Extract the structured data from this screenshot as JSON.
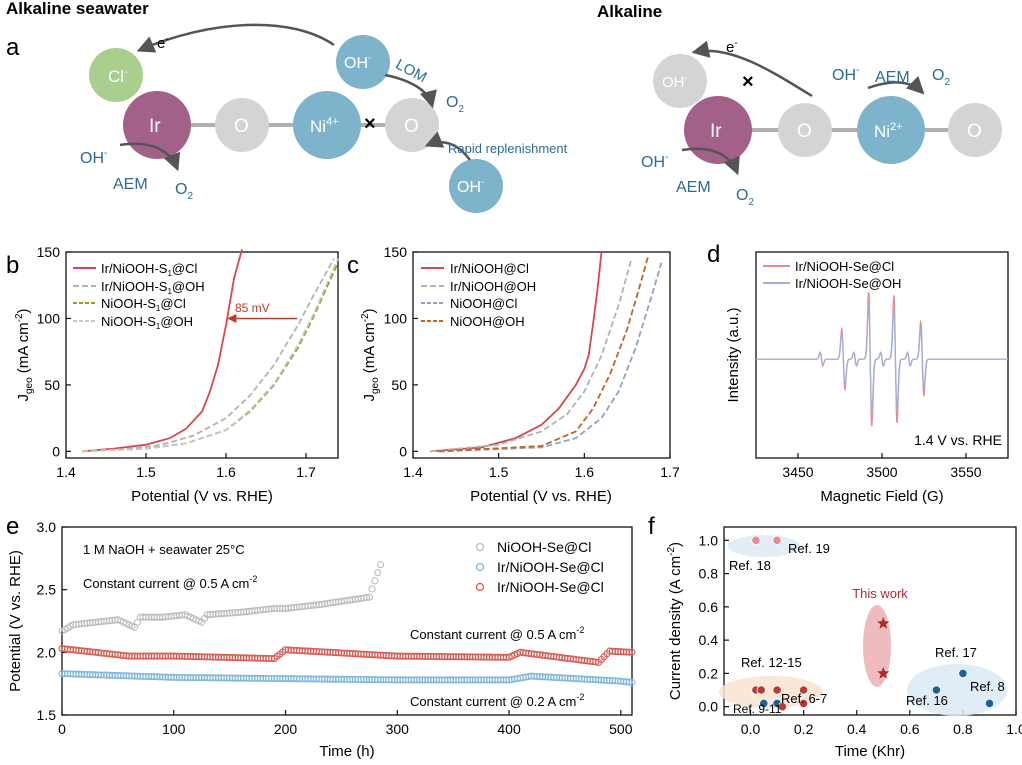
{
  "figure": {
    "headings": {
      "left": "Alkaline seawater",
      "right": "Alkaline"
    },
    "panel_labels": {
      "a": "a",
      "b": "b",
      "c": "c",
      "d": "d",
      "e": "e",
      "f": "f"
    },
    "schematic": {
      "seawater": {
        "cl": "Cl",
        "cl_sup": "-",
        "ir": "Ir",
        "o1": "O",
        "ni": "Ni",
        "ni_sup": "4+",
        "o2": "O",
        "oh_top": "OH",
        "oh_top_sup": "-",
        "oh_bottom": "OH",
        "oh_bottom_sup": "-",
        "electron": "e",
        "electron_sup": "-",
        "lom": "LOM",
        "o2_product_lom": "O",
        "o2_product_lom_sub": "2",
        "oh_left": "OH",
        "oh_left_sup": "-",
        "aem": "AEM",
        "o2_product_aem": "O",
        "o2_product_aem_sub": "2",
        "rapid": "Rapid replenishment",
        "block_mark": "×"
      },
      "alkaline": {
        "oh_gray": "OH",
        "oh_gray_sup": "-",
        "electron": "e",
        "electron_sup": "-",
        "ir": "Ir",
        "o1": "O",
        "ni": "Ni",
        "ni_sup": "2+",
        "o2": "O",
        "oh_free": "OH",
        "oh_free_sup": "-",
        "aem_right": "AEM",
        "o2_right": "O",
        "o2_right_sub": "2",
        "oh_left": "OH",
        "oh_left_sup": "-",
        "aem_left": "AEM",
        "o2_left": "O",
        "o2_left_sub": "2",
        "block_mark": "×"
      }
    },
    "colors": {
      "ir": "#a3618a",
      "ni": "#7db4cc",
      "o": "#d4d4d4",
      "cl": "#a8cf8e",
      "text_blue": "#2a6c98",
      "arrow": "#555555",
      "red": "#d8474d",
      "gray_dash": "#b3b3b3",
      "olive": "#9a9a1a",
      "light_gray": "#c8c8c8",
      "blue_dash": "#8fa3bf",
      "orange_dash": "#c0642a",
      "epr_red": "#e88a90",
      "epr_blue": "#9fb0d8",
      "e_gray": "#bdbdbd",
      "e_blue": "#7fb6dc",
      "e_red": "#d9594f",
      "star": "#b02a2a",
      "dark_red": "#b83a32",
      "dark_blue": "#1f5f96"
    }
  },
  "chart_data": [
    {
      "panel": "b",
      "type": "line",
      "xlabel": "Potential (V vs. RHE)",
      "ylabel": "J",
      "ylabel_sub": "geo",
      "ylabel_tail": " (mA cm",
      "ylabel_sup": "-2",
      "ylabel_end": ")",
      "xlim": [
        1.4,
        1.74
      ],
      "ylim": [
        -5,
        150
      ],
      "xticks": [
        1.4,
        1.5,
        1.6,
        1.7
      ],
      "xtick_labels": [
        "1.4",
        "1.5",
        "1.6",
        "1.7"
      ],
      "yticks": [
        0,
        50,
        100,
        150
      ],
      "ytick_labels": [
        "0",
        "50",
        "100",
        "150"
      ],
      "annotation": "85 mV",
      "annotation_at": {
        "x_from": 1.689,
        "x_to": 1.604,
        "y": 100
      },
      "series": [
        {
          "name": "Ir/NiOOH-S",
          "name_sub": "1",
          "name_tail": "@Cl",
          "style": "solid",
          "color": "#d8474d",
          "x": [
            1.42,
            1.46,
            1.5,
            1.53,
            1.55,
            1.57,
            1.58,
            1.59,
            1.6,
            1.61,
            1.62
          ],
          "y": [
            0,
            2,
            5,
            10,
            17,
            30,
            45,
            65,
            95,
            130,
            152
          ]
        },
        {
          "name": "Ir/NiOOH-S",
          "name_sub": "1",
          "name_tail": "@OH",
          "style": "dashed",
          "color": "#b3b3b3",
          "x": [
            1.42,
            1.48,
            1.52,
            1.56,
            1.6,
            1.63,
            1.66,
            1.69,
            1.71,
            1.735
          ],
          "y": [
            0,
            2,
            5,
            12,
            25,
            42,
            65,
            95,
            118,
            145
          ]
        },
        {
          "name": "NiOOH-S",
          "name_sub": "1",
          "name_tail": "@Cl",
          "style": "dashed",
          "color": "#9a9a1a",
          "x": [
            1.42,
            1.5,
            1.55,
            1.6,
            1.63,
            1.66,
            1.69,
            1.71,
            1.74
          ],
          "y": [
            0,
            2,
            6,
            16,
            30,
            50,
            78,
            102,
            142
          ]
        },
        {
          "name": "NiOOH-S",
          "name_sub": "1",
          "name_tail": "@OH",
          "style": "dashed",
          "color": "#c8c8c8",
          "x": [
            1.42,
            1.5,
            1.55,
            1.6,
            1.63,
            1.66,
            1.69,
            1.71,
            1.74
          ],
          "y": [
            0,
            2,
            6,
            16,
            31,
            51,
            80,
            104,
            145
          ]
        }
      ]
    },
    {
      "panel": "c",
      "type": "line",
      "xlabel": "Potential (V vs. RHE)",
      "ylabel": "J",
      "ylabel_sub": "geo",
      "ylabel_tail": " (mA cm",
      "ylabel_sup": "-2",
      "ylabel_end": ")",
      "xlim": [
        1.4,
        1.7
      ],
      "ylim": [
        -5,
        150
      ],
      "xticks": [
        1.4,
        1.5,
        1.6,
        1.7
      ],
      "xtick_labels": [
        "1.4",
        "1.5",
        "1.6",
        "1.7"
      ],
      "yticks": [
        0,
        50,
        100,
        150
      ],
      "ytick_labels": [
        "0",
        "50",
        "100",
        "150"
      ],
      "series": [
        {
          "name": "Ir/NiOOH@Cl",
          "style": "solid",
          "color": "#d8474d",
          "x": [
            1.42,
            1.48,
            1.52,
            1.55,
            1.57,
            1.59,
            1.6,
            1.605,
            1.61,
            1.615,
            1.62
          ],
          "y": [
            0,
            3,
            10,
            20,
            32,
            50,
            62,
            72,
            95,
            120,
            150
          ]
        },
        {
          "name": "Ir/NiOOH@OH",
          "style": "dashed",
          "color": "#b3b3b3",
          "x": [
            1.42,
            1.5,
            1.55,
            1.58,
            1.6,
            1.62,
            1.64,
            1.655
          ],
          "y": [
            0,
            5,
            15,
            28,
            45,
            72,
            110,
            145
          ]
        },
        {
          "name": "NiOOH@Cl",
          "style": "dashed",
          "color": "#8fa3bf",
          "x": [
            1.43,
            1.55,
            1.59,
            1.62,
            1.64,
            1.66,
            1.68,
            1.69
          ],
          "y": [
            0,
            3,
            10,
            25,
            45,
            78,
            120,
            142
          ]
        },
        {
          "name": "NiOOH@OH",
          "style": "dashed",
          "color": "#c0642a",
          "x": [
            1.43,
            1.55,
            1.59,
            1.61,
            1.63,
            1.65,
            1.665,
            1.675
          ],
          "y": [
            0,
            4,
            15,
            32,
            58,
            92,
            125,
            148
          ]
        }
      ]
    },
    {
      "panel": "d",
      "type": "line",
      "xlabel": "Magnetic Field (G)",
      "ylabel": "Intensity (a.u.)",
      "xlim": [
        3425,
        3575
      ],
      "xticks": [
        3450,
        3500,
        3550
      ],
      "xtick_labels": [
        "3450",
        "3500",
        "3550"
      ],
      "annotation": "1.4 V vs. RHE",
      "peaks": [
        3477,
        3493,
        3508,
        3524
      ],
      "minor_peaks": [
        3464,
        3484,
        3500,
        3516
      ],
      "series": [
        {
          "name": "Ir/NiOOH-Se@Cl",
          "color": "#e88a90",
          "amplitudes": [
            0.45,
            1.0,
            0.95,
            0.55
          ]
        },
        {
          "name": "Ir/NiOOH-Se@OH",
          "color": "#9fb0d8",
          "amplitudes": [
            0.38,
            0.8,
            0.75,
            0.45
          ]
        }
      ]
    },
    {
      "panel": "e",
      "type": "scatter",
      "xlabel": "Time (h)",
      "ylabel": "Potential (V vs. RHE)",
      "xlim": [
        0,
        510
      ],
      "ylim": [
        1.5,
        3.0
      ],
      "xticks": [
        0,
        100,
        200,
        300,
        400,
        500
      ],
      "xtick_labels": [
        "0",
        "100",
        "200",
        "300",
        "400",
        "500"
      ],
      "yticks": [
        1.5,
        2.0,
        2.5,
        3.0
      ],
      "ytick_labels": [
        "1.5",
        "2.0",
        "2.5",
        "3.0"
      ],
      "conditions": "1 M NaOH + seawater 25°C",
      "annot_top": "Constant current @ 0.5 A cm",
      "annot_top_sup": "-2",
      "annot_mid": "Constant current @ 0.5 A cm",
      "annot_mid_sup": "-2",
      "annot_low": "Constant current @ 0.2 A cm",
      "annot_low_sup": "-2",
      "series": [
        {
          "name": "NiOOH-Se@Cl",
          "color": "#bdbdbd",
          "x": [
            0,
            10,
            30,
            50,
            65,
            70,
            90,
            110,
            125,
            130,
            160,
            190,
            200,
            230,
            260,
            275,
            285
          ],
          "y": [
            2.17,
            2.22,
            2.24,
            2.26,
            2.2,
            2.28,
            2.28,
            2.3,
            2.24,
            2.3,
            2.32,
            2.35,
            2.35,
            2.38,
            2.42,
            2.44,
            2.7
          ]
        },
        {
          "name": "Ir/NiOOH-Se@Cl",
          "color": "#7fb6dc",
          "x": [
            0,
            100,
            200,
            300,
            400,
            420,
            500,
            510
          ],
          "y": [
            1.83,
            1.8,
            1.79,
            1.78,
            1.78,
            1.81,
            1.77,
            1.76
          ]
        },
        {
          "name": "Ir/NiOOH-Se@Cl",
          "color": "#d9594f",
          "x": [
            0,
            60,
            100,
            190,
            200,
            300,
            400,
            410,
            480,
            490,
            510
          ],
          "y": [
            2.03,
            1.97,
            1.97,
            1.95,
            2.02,
            1.97,
            1.96,
            2.0,
            1.92,
            2.01,
            2.0
          ]
        }
      ]
    },
    {
      "panel": "f",
      "type": "scatter",
      "xlabel": "Time (Khr)",
      "ylabel": "Current density (A cm",
      "ylabel_sup": "-2",
      "ylabel_end": ")",
      "xlim": [
        -0.1,
        1.0
      ],
      "ylim": [
        -0.05,
        1.08
      ],
      "xticks": [
        0.0,
        0.2,
        0.4,
        0.6,
        0.8,
        1.0
      ],
      "xtick_labels": [
        "0.0",
        "0.2",
        "0.4",
        "0.6",
        "0.8",
        "1.0"
      ],
      "yticks": [
        0.0,
        0.2,
        0.4,
        0.6,
        0.8,
        1.0
      ],
      "ytick_labels": [
        "0.0",
        "0.2",
        "0.4",
        "0.6",
        "0.8",
        "1.0"
      ],
      "this_work_label": "This work",
      "this_work": [
        {
          "x": 0.5,
          "y": 0.5
        },
        {
          "x": 0.5,
          "y": 0.2
        }
      ],
      "refs": [
        {
          "label": "Ref. 18",
          "x": 0.02,
          "y": 1.0,
          "color": "#e88a90"
        },
        {
          "label": "Ref. 19",
          "x": 0.1,
          "y": 1.0,
          "color": "#e88a90"
        },
        {
          "label": "Ref. 12-15",
          "x": 0.02,
          "y": 0.1,
          "color": "#b83a32"
        },
        {
          "label": "Ref. 12-15",
          "x": 0.04,
          "y": 0.1,
          "color": "#b83a32"
        },
        {
          "label": "Ref. 12-15",
          "x": 0.1,
          "y": 0.1,
          "color": "#b83a32"
        },
        {
          "label": "Ref. 12-15",
          "x": 0.2,
          "y": 0.1,
          "color": "#b83a32"
        },
        {
          "label": "Ref. 9-11",
          "x": 0.05,
          "y": 0.02,
          "color": "#1f5f96"
        },
        {
          "label": "Ref. 9-11",
          "x": 0.1,
          "y": 0.02,
          "color": "#1f5f96"
        },
        {
          "label": "Ref. 9-11",
          "x": 0.12,
          "y": 0.0,
          "color": "#b83a32"
        },
        {
          "label": "Ref. 6-7",
          "x": 0.2,
          "y": 0.02,
          "color": "#b83a32"
        },
        {
          "label": "Ref. 16",
          "x": 0.7,
          "y": 0.1,
          "color": "#1f5f96"
        },
        {
          "label": "Ref. 17",
          "x": 0.8,
          "y": 0.2,
          "color": "#1f5f96"
        },
        {
          "label": "Ref. 8",
          "x": 0.9,
          "y": 0.02,
          "color": "#1f5f96"
        }
      ],
      "ref_labels": {
        "r18": "Ref. 18",
        "r19": "Ref. 19",
        "r1215": "Ref. 12-15",
        "r911": "Ref. 9-11",
        "r67": "Ref. 6-7",
        "r16": "Ref. 16",
        "r17": "Ref. 17",
        "r8": "Ref. 8"
      }
    }
  ]
}
